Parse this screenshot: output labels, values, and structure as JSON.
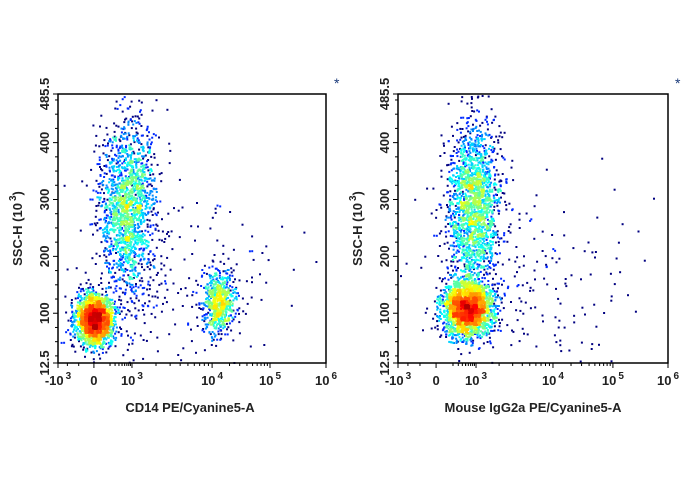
{
  "chart_data": [
    {
      "type": "scatter",
      "subtype": "flow-cytometry density dot plot",
      "xlabel": "CD14 PE/Cyanine5-A",
      "ylabel": "SSC-H (10",
      "ylabel_exp": "3",
      "ylabel_close": ")",
      "marker": "*",
      "x_scale": "biexponential",
      "xlim": [
        -1000,
        1000000
      ],
      "ylim": [
        12.5,
        485.5
      ],
      "x_ticks": [
        {
          "value": -1000,
          "base": "-10",
          "exp": "3"
        },
        {
          "value": 0,
          "base": "0",
          "exp": ""
        },
        {
          "value": 1000,
          "base": "10",
          "exp": "3"
        },
        {
          "value": 10000,
          "base": "10",
          "exp": "4"
        },
        {
          "value": 100000,
          "base": "10",
          "exp": "5"
        },
        {
          "value": 1000000,
          "base": "10",
          "exp": "6"
        }
      ],
      "y_ticks": [
        "12.5",
        "100",
        "200",
        "300",
        "400",
        "485.5"
      ],
      "colormap": "jet (blue = low density, red = high density)",
      "populations": [
        {
          "x_center": 0,
          "y_center": 90,
          "events": 2200,
          "x_spread": 0.035,
          "y_spread": 22
        },
        {
          "x_center": 700,
          "y_center": 290,
          "events": 1700,
          "x_spread": 0.05,
          "y_spread": 75
        },
        {
          "x_center": 13000,
          "y_center": 120,
          "events": 650,
          "x_spread": 0.03,
          "y_spread": 28
        },
        {
          "x_center": 3000,
          "y_center": 150,
          "events": 250,
          "x_spread": 0.2,
          "y_spread": 90
        }
      ]
    },
    {
      "type": "scatter",
      "subtype": "flow-cytometry density dot plot",
      "xlabel": "Mouse IgG2a PE/Cyanine5-A",
      "ylabel": "SSC-H (10",
      "ylabel_exp": "3",
      "ylabel_close": ")",
      "marker": "*",
      "x_scale": "biexponential",
      "xlim": [
        -1000,
        1000000
      ],
      "ylim": [
        12.5,
        485.5
      ],
      "x_ticks": [
        {
          "value": -1000,
          "base": "-10",
          "exp": "3"
        },
        {
          "value": 0,
          "base": "0",
          "exp": ""
        },
        {
          "value": 1000,
          "base": "10",
          "exp": "3"
        },
        {
          "value": 10000,
          "base": "10",
          "exp": "4"
        },
        {
          "value": 100000,
          "base": "10",
          "exp": "5"
        },
        {
          "value": 1000000,
          "base": "10",
          "exp": "6"
        }
      ],
      "y_ticks": [
        "12.5",
        "100",
        "200",
        "300",
        "400",
        "485.5"
      ],
      "colormap": "jet (blue = low density, red = high density)",
      "populations": [
        {
          "x_center": 550,
          "y_center": 110,
          "events": 2600,
          "x_spread": 0.045,
          "y_spread": 24
        },
        {
          "x_center": 850,
          "y_center": 290,
          "events": 1900,
          "x_spread": 0.05,
          "y_spread": 75
        },
        {
          "x_center": 5000,
          "y_center": 150,
          "events": 200,
          "x_spread": 0.2,
          "y_spread": 90
        }
      ]
    }
  ]
}
